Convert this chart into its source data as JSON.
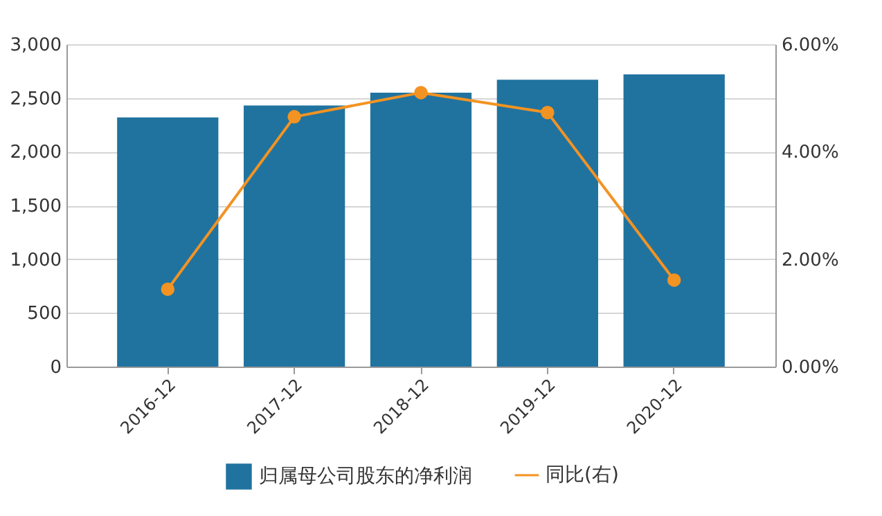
{
  "chart_data": {
    "type": "bar",
    "categories": [
      "2016-12",
      "2017-12",
      "2018-12",
      "2019-12",
      "2020-12"
    ],
    "series": [
      {
        "name": "归属母公司股东的净利润",
        "color": "#21739f",
        "values": [
          2320,
          2430,
          2550,
          2670,
          2720
        ]
      },
      {
        "name": "同比(右)",
        "type": "line",
        "axis": "y2",
        "color": "#f39322",
        "values": [
          1.44,
          4.65,
          5.1,
          4.73,
          1.61
        ]
      }
    ],
    "ylim": [
      0,
      3000
    ],
    "yticks": [
      0,
      {
        "value": 500,
        "label": "500"
      },
      {
        "value": 1000,
        "label": "1,000"
      },
      {
        "value": 1500,
        "label": "1,500"
      },
      {
        "value": 2000,
        "label": "2,000"
      },
      {
        "value": 2500,
        "label": "2,500"
      },
      {
        "value": 3000,
        "label": "3,000"
      }
    ],
    "y2lim": [
      0,
      6
    ],
    "y2ticks": [
      {
        "value": 0,
        "label": "0.00%"
      },
      {
        "value": 2,
        "label": "2.00%"
      },
      {
        "value": 4,
        "label": "4.00%"
      },
      {
        "value": 6,
        "label": "6.00%"
      }
    ],
    "grid": "y",
    "legend": "bottom",
    "marker": "circle",
    "line_style": "solid"
  }
}
